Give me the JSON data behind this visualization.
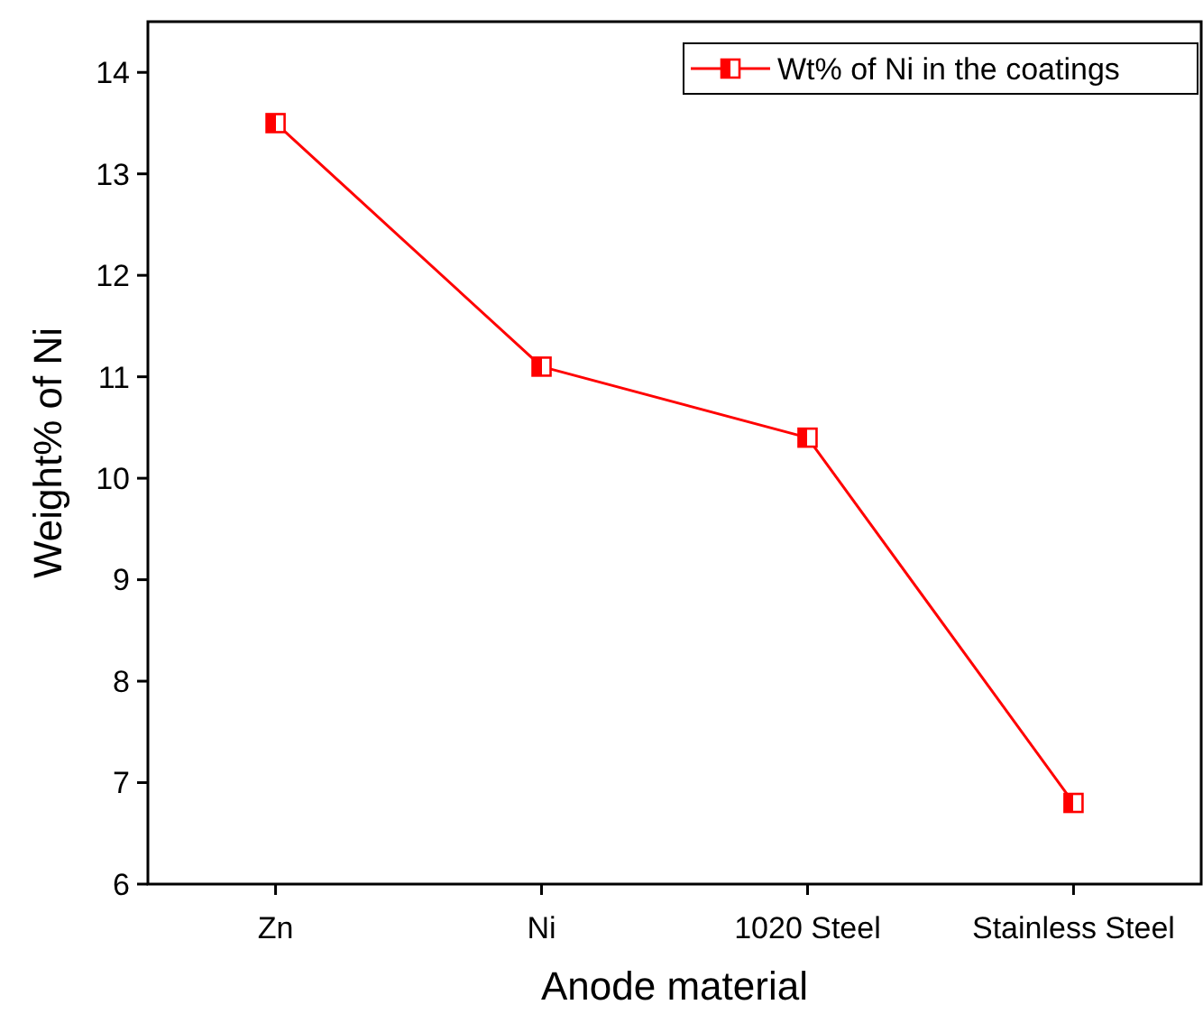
{
  "chart_data": {
    "type": "line",
    "xlabel": "Anode material",
    "ylabel": "Weight% of Ni",
    "categories": [
      "Zn",
      "Ni",
      "1020 Steel",
      "Stainless Steel"
    ],
    "series": [
      {
        "name": "Wt% of Ni in the coatings",
        "color": "#ff0000",
        "values": [
          13.5,
          11.1,
          10.4,
          6.8
        ]
      }
    ],
    "ylim": [
      6,
      14.5
    ],
    "yticks": [
      6,
      7,
      8,
      9,
      10,
      11,
      12,
      13,
      14
    ],
    "legend": "top right",
    "marker": "square",
    "line_style": "solid",
    "grid": false
  }
}
